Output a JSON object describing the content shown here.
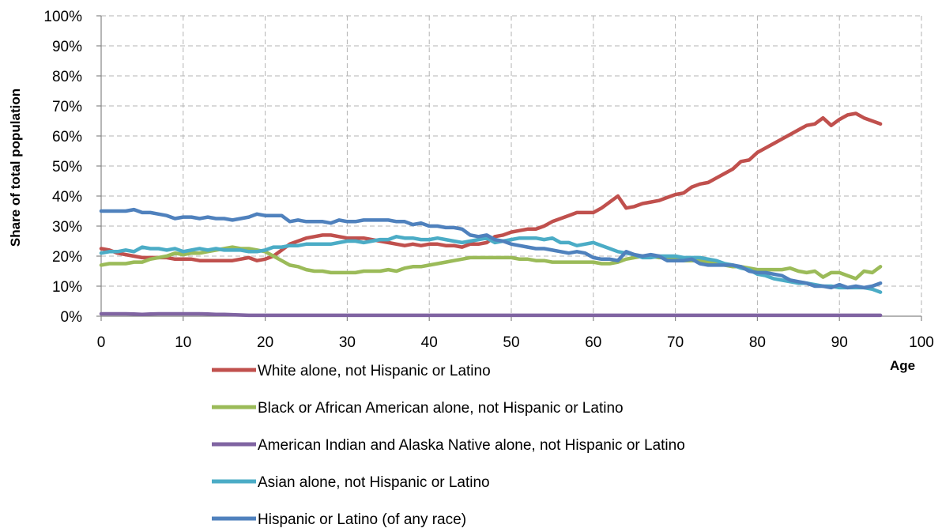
{
  "chart_data": {
    "type": "line",
    "xlabel": "Age",
    "ylabel": "Share of total population",
    "xlim": [
      0,
      100
    ],
    "ylim": [
      0,
      100
    ],
    "x_ticks": [
      0,
      10,
      20,
      30,
      40,
      50,
      60,
      70,
      80,
      90,
      100
    ],
    "y_ticks": [
      "0%",
      "10%",
      "20%",
      "30%",
      "40%",
      "50%",
      "60%",
      "70%",
      "80%",
      "90%",
      "100%"
    ],
    "grid": true,
    "legend_position": "bottom",
    "x": [
      0,
      1,
      2,
      3,
      4,
      5,
      6,
      7,
      8,
      9,
      10,
      11,
      12,
      13,
      14,
      15,
      16,
      17,
      18,
      19,
      20,
      21,
      22,
      23,
      24,
      25,
      26,
      27,
      28,
      29,
      30,
      31,
      32,
      33,
      34,
      35,
      36,
      37,
      38,
      39,
      40,
      41,
      42,
      43,
      44,
      45,
      46,
      47,
      48,
      49,
      50,
      51,
      52,
      53,
      54,
      55,
      56,
      57,
      58,
      59,
      60,
      61,
      62,
      63,
      64,
      65,
      66,
      67,
      68,
      69,
      70,
      71,
      72,
      73,
      74,
      75,
      76,
      77,
      78,
      79,
      80,
      81,
      82,
      83,
      84,
      85,
      86,
      87,
      88,
      89,
      90,
      91,
      92,
      93,
      94,
      95
    ],
    "series": [
      {
        "name": "White alone, not Hispanic or Latino",
        "color": "#c0504d",
        "values": [
          22.5,
          22,
          21,
          20.5,
          20,
          19.5,
          19.5,
          19.5,
          19.5,
          19,
          19,
          19,
          18.5,
          18.5,
          18.5,
          18.5,
          18.5,
          19,
          19.5,
          18.5,
          19,
          20,
          22,
          24,
          25,
          26,
          26.5,
          27,
          27,
          26.5,
          26,
          26,
          26,
          25.5,
          25,
          24.5,
          24,
          23.5,
          24,
          23.5,
          24,
          24,
          23.5,
          23.5,
          23,
          24,
          24,
          24.5,
          26.5,
          27,
          28,
          28.5,
          29,
          29,
          30,
          31.5,
          32.5,
          33.5,
          34.5,
          34.5,
          34.5,
          36,
          38,
          40,
          36,
          36.5,
          37.5,
          38,
          38.5,
          39.5,
          40.5,
          41,
          43,
          44,
          44.5,
          46,
          47.5,
          49,
          51.5,
          52,
          54.5,
          56,
          57.5,
          59,
          60.5,
          62,
          63.5,
          64,
          66,
          63.5,
          65.5,
          67,
          67.5,
          66,
          65,
          64
        ]
      },
      {
        "name": "Black or African American alone, not Hispanic or Latino",
        "color": "#9bbb59",
        "values": [
          17,
          17.5,
          17.5,
          17.5,
          18,
          18,
          19,
          19.5,
          20,
          21,
          20.5,
          21,
          21,
          21.5,
          22,
          22.5,
          23,
          22.5,
          22.5,
          22,
          21.5,
          20,
          18.5,
          17,
          16.5,
          15.5,
          15,
          15,
          14.5,
          14.5,
          14.5,
          14.5,
          15,
          15,
          15,
          15.5,
          15,
          16,
          16.5,
          16.5,
          17,
          17.5,
          18,
          18.5,
          19,
          19.5,
          19.5,
          19.5,
          19.5,
          19.5,
          19.5,
          19,
          19,
          18.5,
          18.5,
          18,
          18,
          18,
          18,
          18,
          18,
          17.5,
          17.5,
          18,
          19,
          19.5,
          20,
          20,
          19.5,
          19.5,
          19,
          18.5,
          18.5,
          18.5,
          18,
          17.5,
          17,
          16.5,
          16.5,
          16,
          15.5,
          15.5,
          15.5,
          15.5,
          16,
          15,
          14.5,
          15,
          13,
          14.5,
          14.5,
          13.5,
          12.5,
          15,
          14.5,
          16.5
        ]
      },
      {
        "name": "American Indian and Alaska Native alone, not Hispanic or Latino",
        "color": "#8064a2",
        "values": [
          0.8,
          0.8,
          0.8,
          0.8,
          0.7,
          0.6,
          0.7,
          0.8,
          0.8,
          0.8,
          0.8,
          0.8,
          0.8,
          0.7,
          0.6,
          0.6,
          0.5,
          0.4,
          0.3,
          0.3,
          0.3,
          0.3,
          0.3,
          0.3,
          0.3,
          0.3,
          0.3,
          0.3,
          0.3,
          0.3,
          0.3,
          0.3,
          0.3,
          0.3,
          0.3,
          0.3,
          0.3,
          0.3,
          0.3,
          0.3,
          0.3,
          0.3,
          0.3,
          0.3,
          0.3,
          0.3,
          0.3,
          0.3,
          0.3,
          0.3,
          0.3,
          0.3,
          0.3,
          0.3,
          0.3,
          0.3,
          0.3,
          0.3,
          0.3,
          0.3,
          0.3,
          0.3,
          0.3,
          0.3,
          0.3,
          0.3,
          0.3,
          0.3,
          0.3,
          0.3,
          0.3,
          0.3,
          0.3,
          0.3,
          0.3,
          0.3,
          0.3,
          0.3,
          0.3,
          0.3,
          0.3,
          0.3,
          0.3,
          0.3,
          0.3,
          0.3,
          0.3,
          0.3,
          0.3,
          0.3,
          0.3,
          0.3,
          0.3,
          0.3,
          0.3,
          0.3
        ]
      },
      {
        "name": "Asian alone, not Hispanic or Latino",
        "color": "#4bacc6",
        "values": [
          21,
          21.5,
          21.5,
          22,
          21.5,
          23,
          22.5,
          22.5,
          22,
          22.5,
          21.5,
          22,
          22.5,
          22,
          22.5,
          22,
          22,
          22,
          21.5,
          21.5,
          22,
          23,
          23,
          23.5,
          23.5,
          24,
          24,
          24,
          24,
          24.5,
          25,
          25,
          24.5,
          25,
          25.5,
          25.5,
          26.5,
          26,
          26,
          25.5,
          25.5,
          26,
          25.5,
          25,
          24.5,
          25,
          25.5,
          26,
          24.5,
          25,
          25.5,
          26,
          26,
          26,
          25.5,
          26,
          24.5,
          24.5,
          23.5,
          24,
          24.5,
          23.5,
          22.5,
          21.5,
          21,
          20.5,
          19.5,
          19.5,
          20,
          20,
          20,
          19.5,
          19.5,
          19.5,
          19,
          18.5,
          17.5,
          17,
          16,
          15.5,
          14,
          13.5,
          12.5,
          12,
          11.5,
          11,
          11,
          10.5,
          10,
          10,
          9.5,
          9.5,
          9.5,
          9.5,
          9,
          8
        ]
      },
      {
        "name": "Hispanic or Latino (of any race)",
        "color": "#4f81bd",
        "values": [
          35,
          35,
          35,
          35,
          35.5,
          34.5,
          34.5,
          34,
          33.5,
          32.5,
          33,
          33,
          32.5,
          33,
          32.5,
          32.5,
          32,
          32.5,
          33,
          34,
          33.5,
          33.5,
          33.5,
          31.5,
          32,
          31.5,
          31.5,
          31.5,
          31,
          32,
          31.5,
          31.5,
          32,
          32,
          32,
          32,
          31.5,
          31.5,
          30.5,
          31,
          30,
          30,
          29.5,
          29.5,
          29,
          27,
          26.5,
          27,
          25.5,
          25,
          24,
          23.5,
          23,
          22.5,
          22.5,
          22,
          21.5,
          21,
          21.5,
          21,
          19.5,
          19,
          19,
          18.5,
          21.5,
          20.5,
          20,
          20.5,
          20,
          18.5,
          18.5,
          18.5,
          19,
          17.5,
          17,
          17,
          17,
          17,
          16.5,
          15,
          14.5,
          14.5,
          14,
          13.5,
          12,
          11.5,
          11,
          10,
          10,
          9.5,
          10.5,
          9.5,
          10,
          9.5,
          10,
          11
        ]
      }
    ]
  }
}
